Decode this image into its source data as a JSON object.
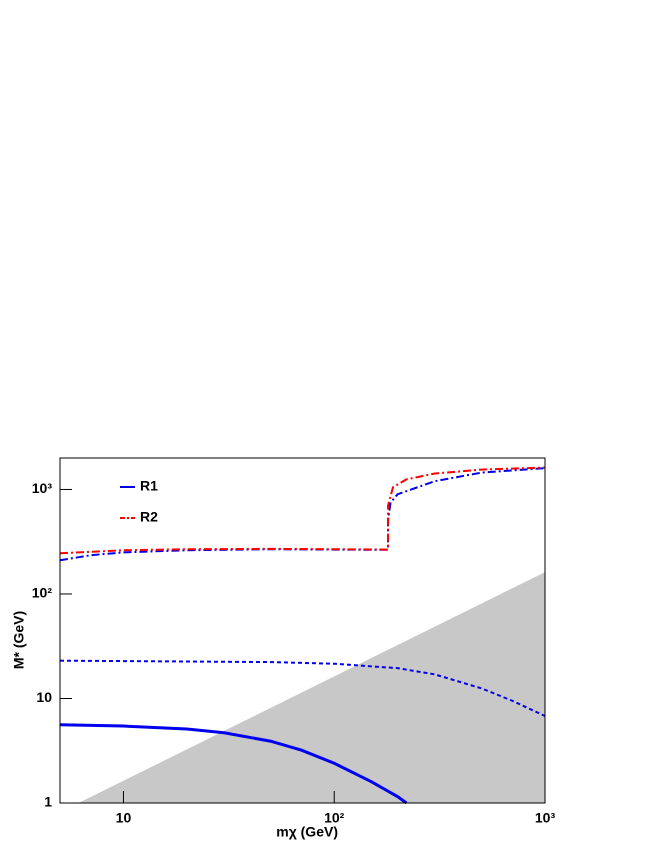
{
  "chart_data": {
    "type": "line",
    "xlabel": "mχ (GeV)",
    "ylabel": "M* (GeV)",
    "xscale": "log",
    "yscale": "log",
    "xlim": [
      5,
      1000
    ],
    "ylim": [
      1,
      2000
    ],
    "xticks": [
      10,
      {
        "value": 100,
        "label": "10²"
      },
      {
        "value": 1000,
        "label": "10³"
      }
    ],
    "yticks": [
      1,
      10,
      {
        "value": 100,
        "label": "10²"
      },
      {
        "value": 1000,
        "label": "10³"
      }
    ],
    "legend": "top-left",
    "shaded": {
      "color": "#c8c8c8",
      "x": [
        6.2,
        1000
      ],
      "y": [
        1,
        160
      ]
    },
    "series": [
      {
        "name": "R1",
        "color": "#0000ee",
        "dash": "solid",
        "x": [
          5,
          10,
          20,
          30,
          50,
          70,
          100,
          150,
          200,
          220
        ],
        "y": [
          5.6,
          5.45,
          5.1,
          4.7,
          3.9,
          3.2,
          2.4,
          1.6,
          1.15,
          1.0
        ]
      },
      {
        "color": "#0000ee",
        "dash": "dashed",
        "x": [
          5,
          10,
          50,
          100,
          200,
          300,
          500,
          700,
          1000
        ],
        "y": [
          23,
          22.8,
          22.3,
          21.5,
          19.5,
          17,
          12.5,
          9.5,
          6.8
        ]
      },
      {
        "color": "#0000ee",
        "dash": "dashdot",
        "x": [
          5,
          7,
          10,
          20,
          50,
          100,
          150,
          180,
          180,
          185,
          200,
          300,
          500,
          1000
        ],
        "y": [
          210,
          235,
          250,
          262,
          268,
          266,
          265,
          265,
          500,
          750,
          900,
          1200,
          1450,
          1600
        ]
      },
      {
        "name": "R2",
        "color": "#ff0000",
        "dash": "dashdot",
        "x": [
          5,
          10,
          20,
          50,
          100,
          180,
          180,
          190,
          220,
          300,
          500,
          1000
        ],
        "y": [
          245,
          262,
          268,
          270,
          268,
          266,
          700,
          1050,
          1250,
          1420,
          1550,
          1620
        ]
      }
    ]
  }
}
